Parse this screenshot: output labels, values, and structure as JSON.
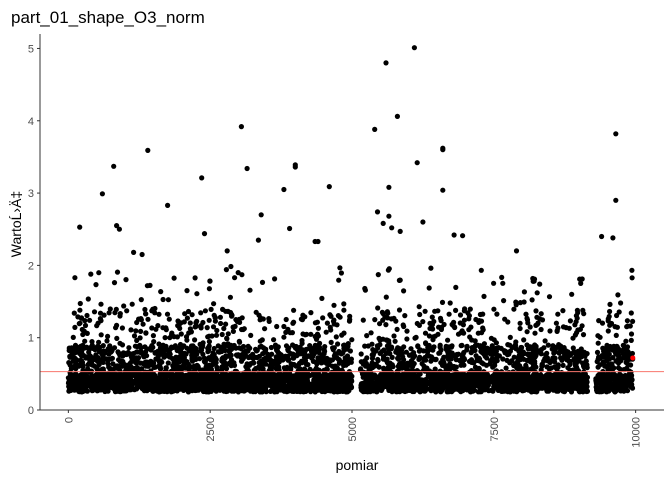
{
  "chart_data": {
    "type": "scatter",
    "title": "part_01_shape_O3_norm",
    "xlabel": "pomiar",
    "ylabel": "WartoĹ›Ä‡",
    "xlim": [
      -500,
      10500
    ],
    "ylim": [
      0,
      5.2
    ],
    "x_ticks": [
      0,
      2500,
      5000,
      7500,
      10000
    ],
    "x_tick_labels": [
      "0",
      "2500",
      "5000",
      "7500",
      "10000"
    ],
    "y_ticks": [
      0,
      1,
      2,
      3,
      4,
      5
    ],
    "y_tick_labels": [
      "0",
      "1",
      "2",
      "3",
      "4",
      "5"
    ],
    "x_tick_label_rotation": -90,
    "grid": false,
    "point_color": "#000000",
    "reference_line": {
      "y": 0.53,
      "color": "#f8766d"
    },
    "highlight_point": {
      "x": 9950,
      "y": 0.72,
      "color": "#ff0000"
    },
    "series": [
      {
        "values": "dense band of ~10000 measurements, mostly between 0.25 and 1.2",
        "points": [
          [
            200,
            2.53
          ],
          [
            600,
            2.99
          ],
          [
            800,
            3.37
          ],
          [
            1400,
            3.59
          ],
          [
            1750,
            2.83
          ],
          [
            2350,
            3.21
          ],
          [
            3050,
            3.92
          ],
          [
            3150,
            3.34
          ],
          [
            3400,
            2.7
          ],
          [
            3800,
            3.05
          ],
          [
            4000,
            3.36
          ],
          [
            4000,
            3.39
          ],
          [
            4600,
            3.09
          ],
          [
            5400,
            3.88
          ],
          [
            5600,
            4.8
          ],
          [
            5800,
            4.06
          ],
          [
            6100,
            5.01
          ],
          [
            6150,
            3.42
          ],
          [
            6600,
            3.62
          ],
          [
            6600,
            3.6
          ],
          [
            6600,
            3.04
          ],
          [
            9650,
            3.82
          ],
          [
            9650,
            2.9
          ],
          [
            5450,
            2.74
          ],
          [
            5650,
            2.68
          ],
          [
            5550,
            2.58
          ],
          [
            5700,
            2.52
          ],
          [
            5850,
            2.47
          ],
          [
            6250,
            2.6
          ],
          [
            6800,
            2.42
          ],
          [
            6950,
            2.41
          ],
          [
            5650,
            3.08
          ],
          [
            7900,
            2.2
          ],
          [
            9400,
            2.4
          ],
          [
            9600,
            2.38
          ],
          [
            850,
            2.55
          ],
          [
            900,
            2.5
          ],
          [
            1150,
            2.18
          ],
          [
            1300,
            2.15
          ],
          [
            2400,
            2.44
          ],
          [
            2800,
            2.2
          ],
          [
            3350,
            2.35
          ],
          [
            3900,
            2.51
          ],
          [
            4350,
            2.33
          ],
          [
            4400,
            2.33
          ]
        ]
      }
    ]
  }
}
